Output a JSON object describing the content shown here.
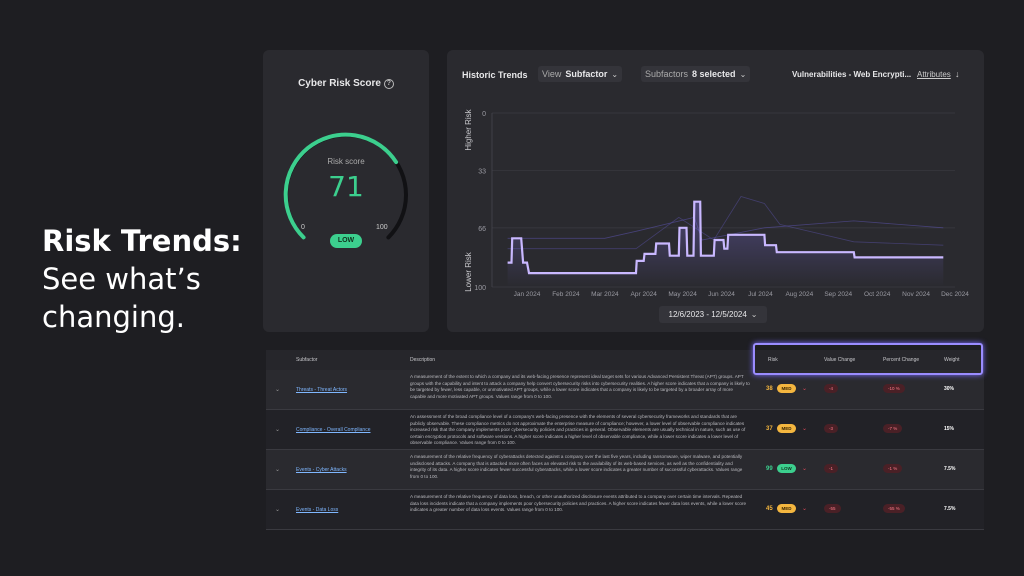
{
  "headline": {
    "line1": "Risk Trends:",
    "line2": "See what’s",
    "line3": "changing."
  },
  "score": {
    "title": "Cyber Risk Score",
    "label": "Risk score",
    "value": 71,
    "min": "0",
    "max": "100",
    "badge": "LOW",
    "color": "#3ccf8e"
  },
  "trends": {
    "title": "Historic Trends",
    "view_label": "View",
    "view_value": "Subfactor",
    "subfactors_label": "Subfactors",
    "subfactors_value": "8 selected",
    "vulnerability": "Vulnerabilities - Web Encrypti...",
    "attributes": "Attributes",
    "date_range": "12/6/2023 - 12/5/2024"
  },
  "chart_data": {
    "type": "line",
    "ylabel_top": "Higher Risk",
    "ylabel_bottom": "Lower Risk",
    "yticks": [
      "0",
      "33",
      "66",
      "100"
    ],
    "ylim": [
      0,
      100
    ],
    "y_inverted": true,
    "xticks": [
      "Jan 2024",
      "Feb 2024",
      "Mar 2024",
      "Apr 2024",
      "May 2024",
      "Jun 2024",
      "Jul 2024",
      "Aug 2024",
      "Sep 2024",
      "Oct 2024",
      "Nov 2024",
      "Dec 2024"
    ],
    "grid": "horizontal",
    "series": [
      {
        "color": "#c9b8ff",
        "points": [
          [
            0.0,
            86
          ],
          [
            0.1,
            86
          ],
          [
            0.12,
            72
          ],
          [
            0.35,
            72
          ],
          [
            0.4,
            86
          ],
          [
            0.5,
            86
          ],
          [
            0.55,
            92
          ],
          [
            1.0,
            92
          ],
          [
            1.5,
            92
          ],
          [
            2.5,
            92
          ],
          [
            3.3,
            92
          ],
          [
            3.32,
            85
          ],
          [
            3.5,
            85
          ],
          [
            3.52,
            81
          ],
          [
            3.8,
            81
          ],
          [
            3.82,
            75
          ],
          [
            4.15,
            75
          ],
          [
            4.17,
            82
          ],
          [
            4.4,
            82
          ],
          [
            4.42,
            66
          ],
          [
            4.6,
            66
          ],
          [
            4.62,
            82
          ],
          [
            4.78,
            82
          ],
          [
            4.8,
            51
          ],
          [
            4.95,
            51
          ],
          [
            4.97,
            82
          ],
          [
            5.3,
            82
          ],
          [
            5.32,
            73
          ],
          [
            5.55,
            73
          ],
          [
            5.57,
            78
          ],
          [
            5.65,
            78
          ],
          [
            5.67,
            70
          ],
          [
            6.6,
            70
          ],
          [
            6.62,
            76
          ],
          [
            6.9,
            76
          ],
          [
            6.92,
            80
          ],
          [
            8.9,
            80
          ],
          [
            8.92,
            83
          ],
          [
            11.2,
            83
          ]
        ]
      }
    ]
  },
  "table": {
    "headers": {
      "subfactor": "Subfactor",
      "description": "Description",
      "risk": "Risk",
      "value_change": "Value Change",
      "percent_change": "Percent Change",
      "weight": "Weight"
    },
    "rows": [
      {
        "name": "Threats - Threat Actors",
        "description": "A measurement of the extent to which a company and its web-facing presence represent ideal target sets for various Advanced Persistent Threat (APT) groups. APT groups with the capability and intent to attack a company help convert cybersecurity risks into cybersecurity realities. A higher score indicates that a company is likely to be targeted by fewer, less capable, or unmotivated APT groups, while a lower score indicates that a company is likely to be targeted by a broader array of more capable and more motivated APT groups. Values range from 0 to 100.",
        "risk": "38",
        "level": "MED",
        "value_change": "-4",
        "percent_change": "-10 %",
        "weight": "30%"
      },
      {
        "name": "Compliance - Overall Compliance",
        "description": "An assessment of the broad compliance level of a company's web-facing presence with the elements of several cybersecurity frameworks and standards that are publicly observable. These compliance metrics do not approximate the enterprise measure of compliance; however, a lower level of observable compliance indicates increased risk that the company implements poor cybersecurity policies and practices in general. Observable elements are usually technical in nature, such as use of certain encryption protocols and software versions. A higher score indicates a higher level of observable compliance, while a lower score indicates a lower level of observable compliance. Values range from 0 to 100.",
        "risk": "37",
        "level": "MED",
        "value_change": "-3",
        "percent_change": "-7 %",
        "weight": "15%"
      },
      {
        "name": "Events - Cyber Attacks",
        "description": "A measurement of the relative frequency of cyberattacks detected against a company over the last five years, including ransomware, wiper malware, and potentially undisclosed attacks. A company that is attacked more often faces an elevated risk to the availability of its web-based services, as well as the confidentiality and integrity of its data. A higher score indicates fewer successful cyberattacks, while a lower score indicates a greater number of successful cyberattacks. Values range from 0 to 100.",
        "risk": "99",
        "level": "LOW",
        "value_change": "-1",
        "percent_change": "-1 %",
        "weight": "7.5%"
      },
      {
        "name": "Events - Data Loss",
        "description": "A measurement of the relative frequency of data loss, breach, or other unauthorized disclosure events attributed to a company over certain time intervals. Repeated data loss incidents indicate that a company implements poor cybersecurity policies and practices. A higher score indicates fewer data loss events, while a lower score indicates a greater number of data loss events. Values range from 0 to 100.",
        "risk": "45",
        "level": "MED",
        "value_change": "-55",
        "percent_change": "-55 %",
        "weight": "7.5%"
      }
    ]
  }
}
